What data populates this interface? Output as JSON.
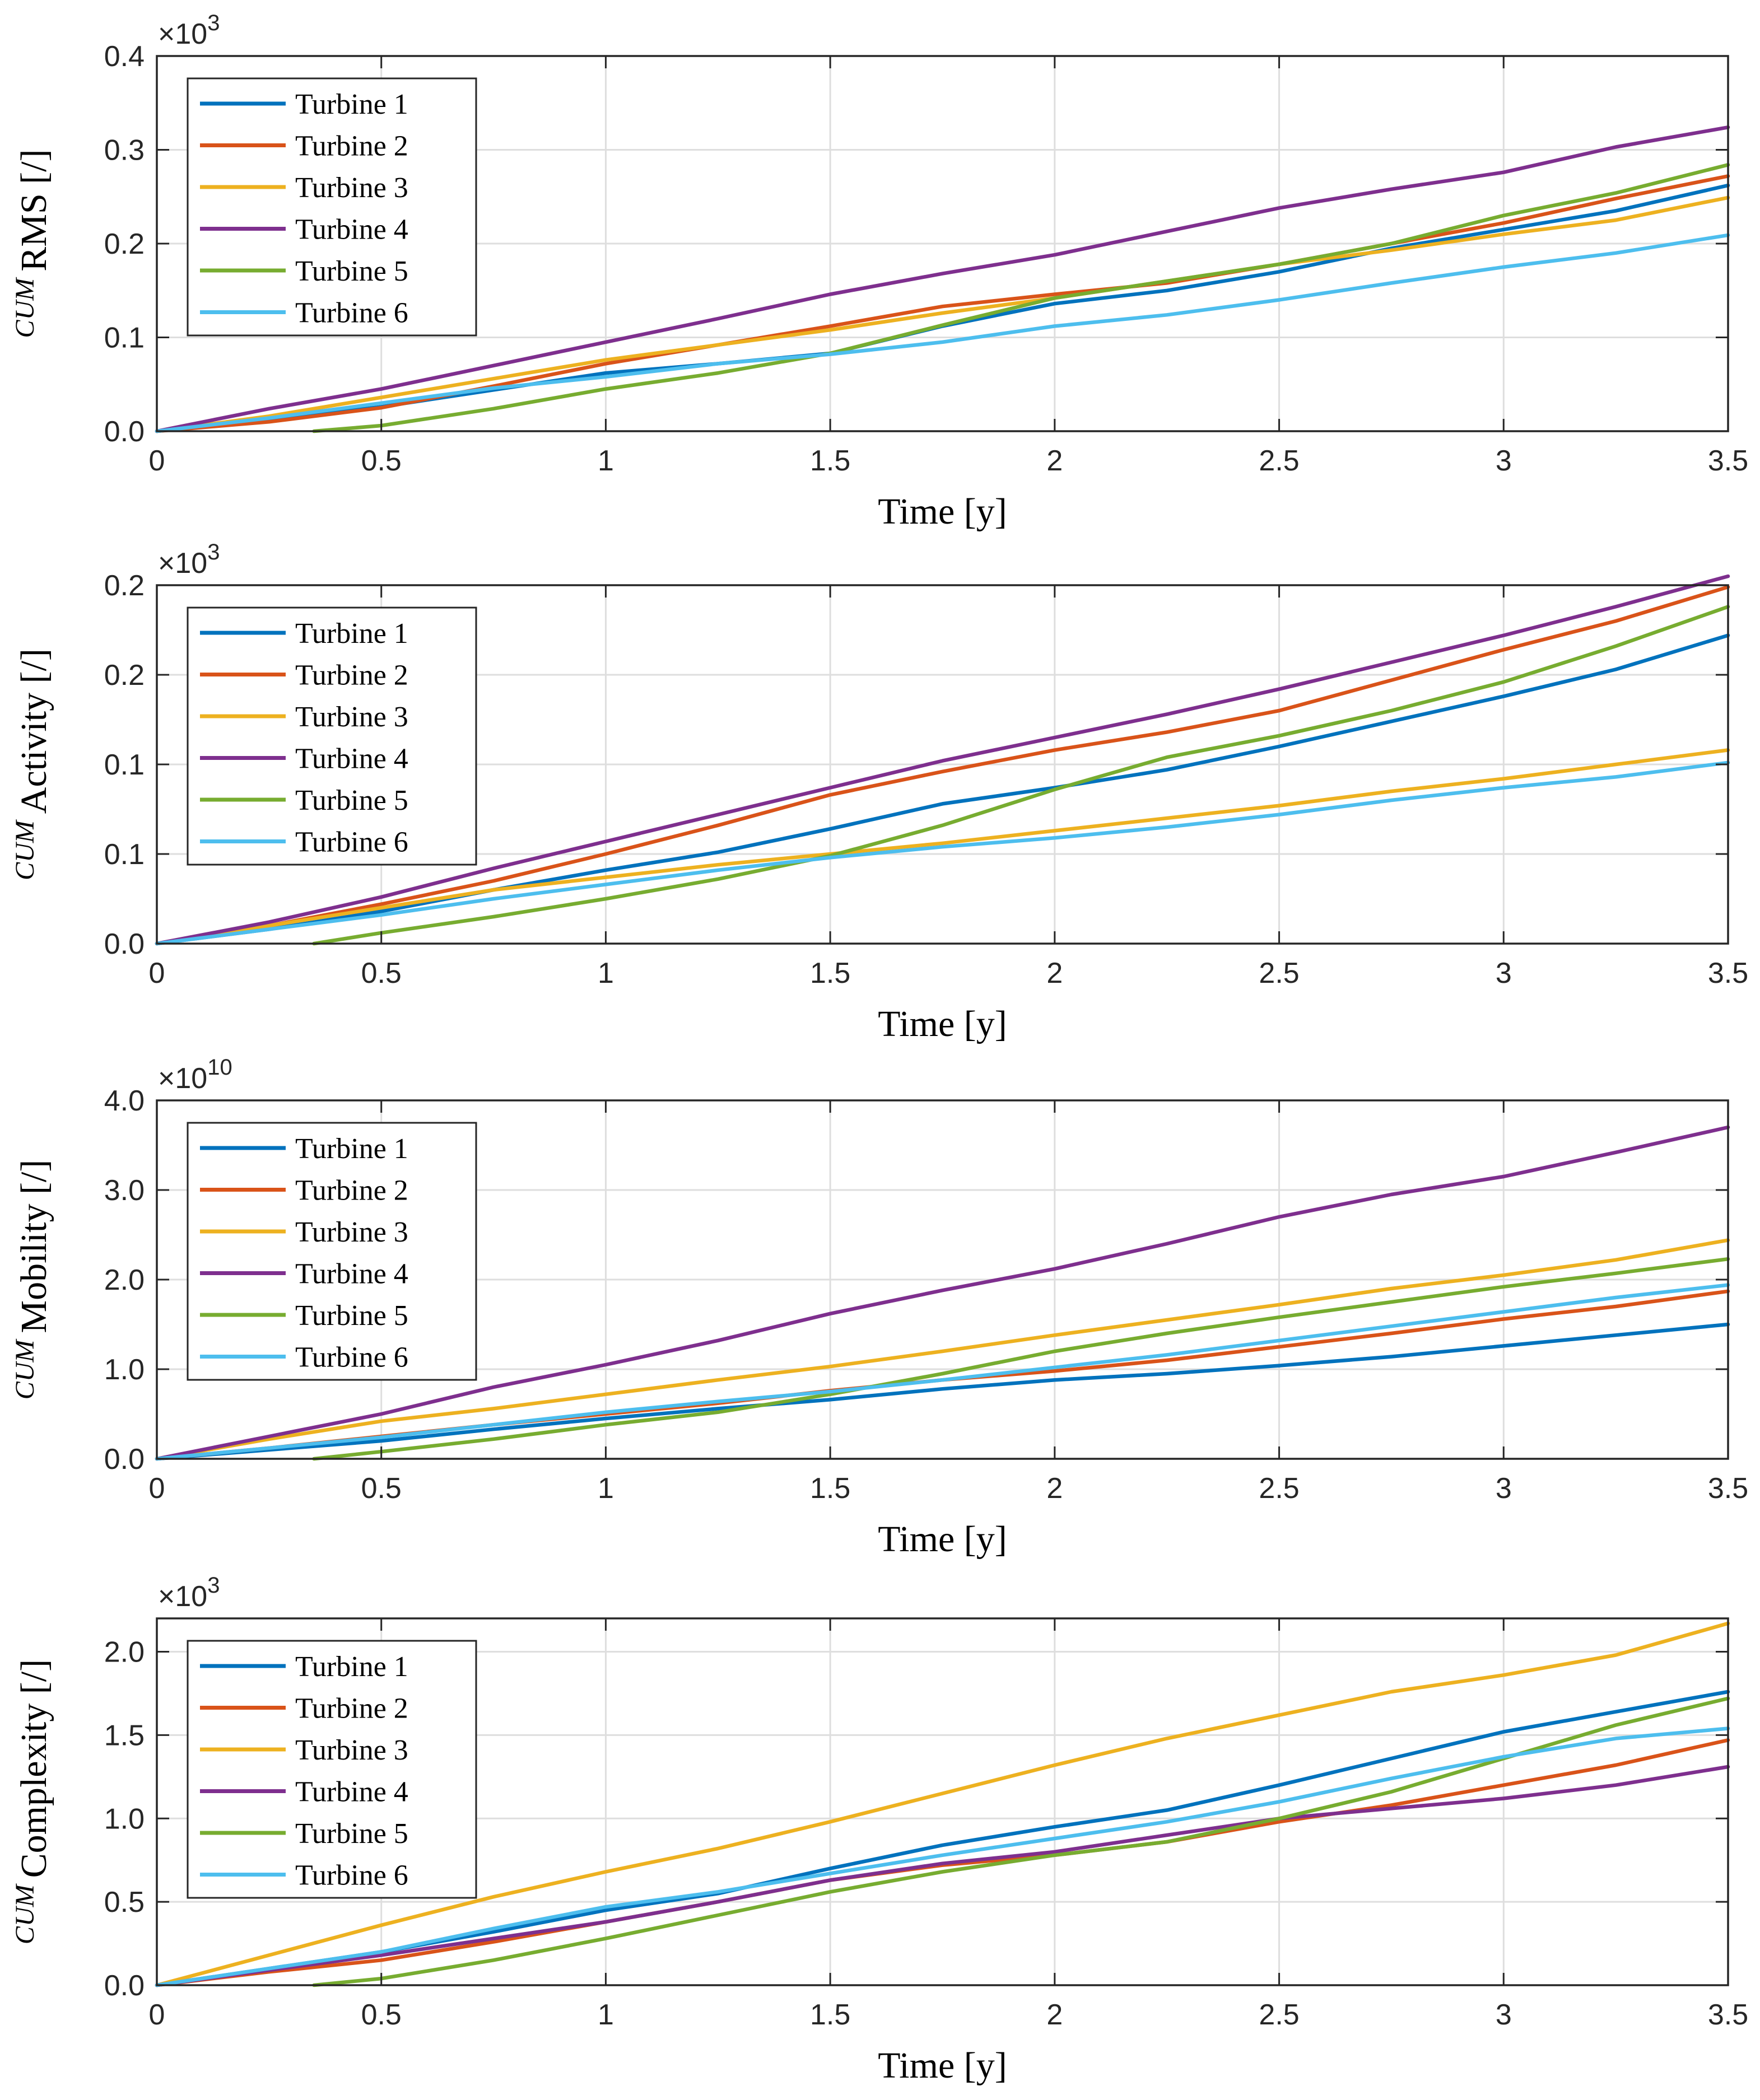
{
  "colors": {
    "turbine_1": "#0072BD",
    "turbine_2": "#D95319",
    "turbine_3": "#EDB120",
    "turbine_4": "#7E2F8E",
    "turbine_5": "#77AC30",
    "turbine_6": "#4DBEEE"
  },
  "legend": [
    "Turbine 1",
    "Turbine 2",
    "Turbine 3",
    "Turbine 4",
    "Turbine 5",
    "Turbine 6"
  ],
  "chart_data": [
    {
      "type": "line",
      "ylabel_sup": "CUM",
      "ylabel": "RMS [/]",
      "xlabel": "Time [y]",
      "exponent_base": "×10",
      "exponent": "3",
      "xlim": [
        0,
        3.5
      ],
      "ylim": [
        0,
        0.4
      ],
      "xticks": [
        0,
        0.5,
        1,
        1.5,
        2,
        2.5,
        3,
        3.5
      ],
      "xtick_labels": [
        "0",
        "0.5",
        "1",
        "1.5",
        "2",
        "2.5",
        "3",
        "3.5"
      ],
      "yticks": [
        0,
        0.1,
        0.2,
        0.3,
        0.4
      ],
      "ytick_labels": [
        "0.0",
        "0.1",
        "0.2",
        "0.3",
        "0.4"
      ],
      "legend_position": "top-left",
      "series": [
        {
          "name": "Turbine 1",
          "x": [
            0,
            0.25,
            0.5,
            0.75,
            1,
            1.25,
            1.5,
            1.75,
            2,
            2.25,
            2.5,
            2.75,
            3,
            3.25,
            3.5
          ],
          "values": [
            0,
            0.012,
            0.026,
            0.044,
            0.062,
            0.072,
            0.083,
            0.112,
            0.136,
            0.15,
            0.17,
            0.195,
            0.215,
            0.235,
            0.262
          ]
        },
        {
          "name": "Turbine 2",
          "x": [
            0,
            0.25,
            0.5,
            0.75,
            1,
            1.25,
            1.5,
            1.75,
            2,
            2.25,
            2.5,
            2.75,
            3,
            3.25,
            3.5
          ],
          "values": [
            0,
            0.01,
            0.025,
            0.048,
            0.072,
            0.092,
            0.112,
            0.133,
            0.146,
            0.158,
            0.178,
            0.2,
            0.222,
            0.248,
            0.272
          ]
        },
        {
          "name": "Turbine 3",
          "x": [
            0,
            0.25,
            0.5,
            0.75,
            1,
            1.25,
            1.5,
            1.75,
            2,
            2.25,
            2.5,
            2.75,
            3,
            3.25,
            3.5
          ],
          "values": [
            0,
            0.016,
            0.036,
            0.056,
            0.076,
            0.092,
            0.108,
            0.126,
            0.142,
            0.16,
            0.178,
            0.193,
            0.21,
            0.225,
            0.249
          ]
        },
        {
          "name": "Turbine 4",
          "x": [
            0,
            0.25,
            0.5,
            0.75,
            1,
            1.25,
            1.5,
            1.75,
            2,
            2.25,
            2.5,
            2.75,
            3,
            3.25,
            3.5
          ],
          "values": [
            0,
            0.024,
            0.045,
            0.07,
            0.095,
            0.12,
            0.146,
            0.168,
            0.188,
            0.213,
            0.238,
            0.258,
            0.276,
            0.303,
            0.324
          ]
        },
        {
          "name": "Turbine 5",
          "x": [
            0.35,
            0.5,
            0.75,
            1,
            1.25,
            1.5,
            1.75,
            2,
            2.25,
            2.5,
            2.75,
            3,
            3.25,
            3.5
          ],
          "values": [
            0,
            0.006,
            0.024,
            0.045,
            0.062,
            0.083,
            0.113,
            0.142,
            0.16,
            0.178,
            0.2,
            0.23,
            0.254,
            0.284
          ]
        },
        {
          "name": "Turbine 6",
          "x": [
            0,
            0.25,
            0.5,
            0.75,
            1,
            1.25,
            1.5,
            1.75,
            2,
            2.25,
            2.5,
            2.75,
            3,
            3.25,
            3.5
          ],
          "values": [
            0,
            0.014,
            0.03,
            0.046,
            0.058,
            0.072,
            0.082,
            0.095,
            0.112,
            0.124,
            0.14,
            0.158,
            0.175,
            0.19,
            0.209
          ]
        }
      ]
    },
    {
      "type": "line",
      "ylabel_sup": "CUM",
      "ylabel": "Activity [/]",
      "xlabel": "Time [y]",
      "exponent_base": "×10",
      "exponent": "3",
      "xlim": [
        0,
        3.5
      ],
      "ylim": [
        0,
        0.2
      ],
      "xticks": [
        0,
        0.5,
        1,
        1.5,
        2,
        2.5,
        3,
        3.5
      ],
      "xtick_labels": [
        "0",
        "0.5",
        "1",
        "1.5",
        "2",
        "2.5",
        "3",
        "3.5"
      ],
      "yticks": [
        0,
        0.05,
        0.1,
        0.15,
        0.2
      ],
      "ytick_labels": [
        "0.0",
        "0.1",
        "0.1",
        "0.2",
        "0.2"
      ],
      "legend_position": "top-left",
      "series": [
        {
          "name": "Turbine 1",
          "x": [
            0,
            0.25,
            0.5,
            0.75,
            1,
            1.25,
            1.5,
            1.75,
            2,
            2.25,
            2.5,
            2.75,
            3,
            3.25,
            3.5
          ],
          "values": [
            0,
            0.008,
            0.018,
            0.03,
            0.041,
            0.051,
            0.064,
            0.078,
            0.087,
            0.097,
            0.11,
            0.124,
            0.138,
            0.153,
            0.172
          ]
        },
        {
          "name": "Turbine 2",
          "x": [
            0,
            0.25,
            0.5,
            0.75,
            1,
            1.25,
            1.5,
            1.75,
            2,
            2.25,
            2.5,
            2.75,
            3,
            3.25,
            3.5
          ],
          "values": [
            0,
            0.01,
            0.022,
            0.035,
            0.05,
            0.066,
            0.083,
            0.096,
            0.108,
            0.118,
            0.13,
            0.147,
            0.164,
            0.18,
            0.199
          ]
        },
        {
          "name": "Turbine 3",
          "x": [
            0,
            0.25,
            0.5,
            0.75,
            1,
            1.25,
            1.5,
            1.75,
            2,
            2.25,
            2.5,
            2.75,
            3,
            3.25,
            3.5
          ],
          "values": [
            0,
            0.01,
            0.02,
            0.03,
            0.037,
            0.044,
            0.05,
            0.056,
            0.063,
            0.07,
            0.077,
            0.085,
            0.092,
            0.1,
            0.108
          ]
        },
        {
          "name": "Turbine 4",
          "x": [
            0,
            0.25,
            0.5,
            0.75,
            1,
            1.25,
            1.5,
            1.75,
            2,
            2.25,
            2.5,
            2.75,
            3,
            3.25,
            3.5
          ],
          "values": [
            0,
            0.012,
            0.026,
            0.042,
            0.057,
            0.072,
            0.087,
            0.102,
            0.115,
            0.128,
            0.142,
            0.157,
            0.172,
            0.188,
            0.205
          ]
        },
        {
          "name": "Turbine 5",
          "x": [
            0.35,
            0.5,
            0.75,
            1,
            1.25,
            1.5,
            1.75,
            2,
            2.25,
            2.5,
            2.75,
            3,
            3.25,
            3.5
          ],
          "values": [
            0,
            0.006,
            0.015,
            0.025,
            0.036,
            0.049,
            0.066,
            0.086,
            0.104,
            0.116,
            0.13,
            0.146,
            0.166,
            0.188
          ]
        },
        {
          "name": "Turbine 6",
          "x": [
            0,
            0.25,
            0.5,
            0.75,
            1,
            1.25,
            1.5,
            1.75,
            2,
            2.25,
            2.5,
            2.75,
            3,
            3.25,
            3.5
          ],
          "values": [
            0,
            0.008,
            0.016,
            0.025,
            0.033,
            0.041,
            0.048,
            0.054,
            0.059,
            0.065,
            0.072,
            0.08,
            0.087,
            0.093,
            0.101
          ]
        }
      ]
    },
    {
      "type": "line",
      "ylabel_sup": "CUM",
      "ylabel": "Mobility [/]",
      "xlabel": "Time [y]",
      "exponent_base": "×10",
      "exponent": "10",
      "xlim": [
        0,
        3.5
      ],
      "ylim": [
        0,
        4.0
      ],
      "xticks": [
        0,
        0.5,
        1,
        1.5,
        2,
        2.5,
        3,
        3.5
      ],
      "xtick_labels": [
        "0",
        "0.5",
        "1",
        "1.5",
        "2",
        "2.5",
        "3",
        "3.5"
      ],
      "yticks": [
        0,
        1,
        2,
        3,
        4
      ],
      "ytick_labels": [
        "0.0",
        "1.0",
        "2.0",
        "3.0",
        "4.0"
      ],
      "legend_position": "top-left",
      "series": [
        {
          "name": "Turbine 1",
          "x": [
            0,
            0.25,
            0.5,
            0.75,
            1,
            1.25,
            1.5,
            1.75,
            2,
            2.25,
            2.5,
            2.75,
            3,
            3.25,
            3.5
          ],
          "values": [
            0,
            0.1,
            0.2,
            0.33,
            0.45,
            0.56,
            0.66,
            0.78,
            0.88,
            0.95,
            1.04,
            1.14,
            1.26,
            1.38,
            1.5
          ]
        },
        {
          "name": "Turbine 2",
          "x": [
            0,
            0.25,
            0.5,
            0.75,
            1,
            1.25,
            1.5,
            1.75,
            2,
            2.25,
            2.5,
            2.75,
            3,
            3.25,
            3.5
          ],
          "values": [
            0,
            0.12,
            0.25,
            0.38,
            0.5,
            0.62,
            0.76,
            0.88,
            0.98,
            1.1,
            1.25,
            1.4,
            1.56,
            1.7,
            1.87
          ]
        },
        {
          "name": "Turbine 3",
          "x": [
            0,
            0.25,
            0.5,
            0.75,
            1,
            1.25,
            1.5,
            1.75,
            2,
            2.25,
            2.5,
            2.75,
            3,
            3.25,
            3.5
          ],
          "values": [
            0,
            0.22,
            0.42,
            0.56,
            0.72,
            0.88,
            1.03,
            1.2,
            1.38,
            1.55,
            1.72,
            1.9,
            2.05,
            2.22,
            2.44
          ]
        },
        {
          "name": "Turbine 4",
          "x": [
            0,
            0.25,
            0.5,
            0.75,
            1,
            1.25,
            1.5,
            1.75,
            2,
            2.25,
            2.5,
            2.75,
            3,
            3.25,
            3.5
          ],
          "values": [
            0,
            0.25,
            0.5,
            0.8,
            1.05,
            1.32,
            1.62,
            1.88,
            2.12,
            2.4,
            2.7,
            2.95,
            3.15,
            3.42,
            3.7
          ]
        },
        {
          "name": "Turbine 5",
          "x": [
            0.35,
            0.5,
            0.75,
            1,
            1.25,
            1.5,
            1.75,
            2,
            2.25,
            2.5,
            2.75,
            3,
            3.25,
            3.5
          ],
          "values": [
            0,
            0.08,
            0.22,
            0.38,
            0.52,
            0.72,
            0.95,
            1.2,
            1.4,
            1.58,
            1.75,
            1.92,
            2.07,
            2.23
          ]
        },
        {
          "name": "Turbine 6",
          "x": [
            0,
            0.25,
            0.5,
            0.75,
            1,
            1.25,
            1.5,
            1.75,
            2,
            2.25,
            2.5,
            2.75,
            3,
            3.25,
            3.5
          ],
          "values": [
            0,
            0.12,
            0.24,
            0.38,
            0.52,
            0.64,
            0.75,
            0.88,
            1.02,
            1.16,
            1.32,
            1.48,
            1.64,
            1.8,
            1.94
          ]
        }
      ]
    },
    {
      "type": "line",
      "ylabel_sup": "CUM",
      "ylabel": "Complexity [/]",
      "xlabel": "Time [y]",
      "exponent_base": "×10",
      "exponent": "3",
      "xlim": [
        0,
        3.5
      ],
      "ylim": [
        0,
        2.2
      ],
      "xticks": [
        0,
        0.5,
        1,
        1.5,
        2,
        2.5,
        3,
        3.5
      ],
      "xtick_labels": [
        "0",
        "0.5",
        "1",
        "1.5",
        "2",
        "2.5",
        "3",
        "3.5"
      ],
      "yticks": [
        0,
        0.5,
        1,
        1.5,
        2
      ],
      "ytick_labels": [
        "0.0",
        "0.5",
        "1.0",
        "1.5",
        "2.0"
      ],
      "legend_position": "top-left",
      "series": [
        {
          "name": "Turbine 1",
          "x": [
            0,
            0.25,
            0.5,
            0.75,
            1,
            1.25,
            1.5,
            1.75,
            2,
            2.25,
            2.5,
            2.75,
            3,
            3.25,
            3.5
          ],
          "values": [
            0,
            0.1,
            0.2,
            0.32,
            0.45,
            0.55,
            0.7,
            0.84,
            0.95,
            1.05,
            1.2,
            1.36,
            1.52,
            1.64,
            1.76
          ]
        },
        {
          "name": "Turbine 2",
          "x": [
            0,
            0.25,
            0.5,
            0.75,
            1,
            1.25,
            1.5,
            1.75,
            2,
            2.25,
            2.5,
            2.75,
            3,
            3.25,
            3.5
          ],
          "values": [
            0,
            0.08,
            0.15,
            0.26,
            0.38,
            0.5,
            0.63,
            0.72,
            0.78,
            0.86,
            0.98,
            1.08,
            1.2,
            1.32,
            1.47
          ]
        },
        {
          "name": "Turbine 3",
          "x": [
            0,
            0.25,
            0.5,
            0.75,
            1,
            1.25,
            1.5,
            1.75,
            2,
            2.25,
            2.5,
            2.75,
            3,
            3.25,
            3.5
          ],
          "values": [
            0,
            0.18,
            0.36,
            0.53,
            0.68,
            0.82,
            0.98,
            1.15,
            1.32,
            1.48,
            1.62,
            1.76,
            1.86,
            1.98,
            2.17
          ]
        },
        {
          "name": "Turbine 4",
          "x": [
            0,
            0.25,
            0.5,
            0.75,
            1,
            1.25,
            1.5,
            1.75,
            2,
            2.25,
            2.5,
            2.75,
            3,
            3.25,
            3.5
          ],
          "values": [
            0,
            0.09,
            0.18,
            0.28,
            0.38,
            0.5,
            0.63,
            0.73,
            0.8,
            0.9,
            1.0,
            1.06,
            1.12,
            1.2,
            1.31
          ]
        },
        {
          "name": "Turbine 5",
          "x": [
            0.35,
            0.5,
            0.75,
            1,
            1.25,
            1.5,
            1.75,
            2,
            2.25,
            2.5,
            2.75,
            3,
            3.25,
            3.5
          ],
          "values": [
            0,
            0.04,
            0.15,
            0.28,
            0.42,
            0.56,
            0.68,
            0.78,
            0.86,
            1.0,
            1.16,
            1.36,
            1.56,
            1.72
          ]
        },
        {
          "name": "Turbine 6",
          "x": [
            0,
            0.25,
            0.5,
            0.75,
            1,
            1.25,
            1.5,
            1.75,
            2,
            2.25,
            2.5,
            2.75,
            3,
            3.25,
            3.5
          ],
          "values": [
            0,
            0.1,
            0.2,
            0.34,
            0.47,
            0.56,
            0.67,
            0.78,
            0.88,
            0.98,
            1.1,
            1.24,
            1.37,
            1.48,
            1.54
          ]
        }
      ]
    }
  ]
}
